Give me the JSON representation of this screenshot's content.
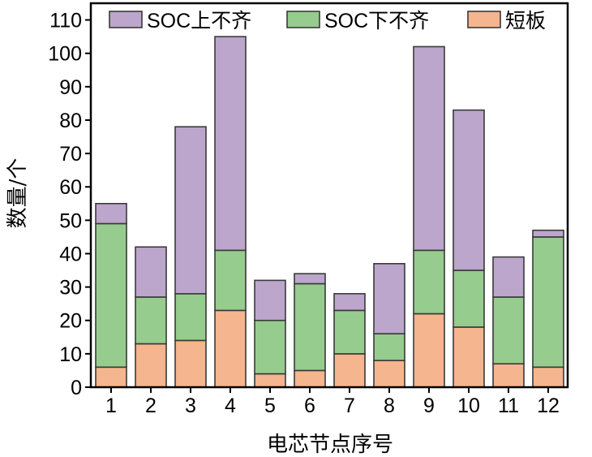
{
  "chart_data": {
    "type": "bar",
    "stacked": true,
    "title": "",
    "xlabel": "电芯节点序号",
    "ylabel": "数量/个",
    "categories": [
      "1",
      "2",
      "3",
      "4",
      "5",
      "6",
      "7",
      "8",
      "9",
      "10",
      "11",
      "12"
    ],
    "series": [
      {
        "name": "短板",
        "color": "#f5b58e",
        "values": [
          6,
          13,
          14,
          23,
          4,
          5,
          10,
          8,
          22,
          18,
          7,
          6
        ]
      },
      {
        "name": "SOC下不齐",
        "color": "#96cc8e",
        "values": [
          43,
          14,
          14,
          18,
          16,
          26,
          13,
          8,
          19,
          17,
          20,
          39
        ]
      },
      {
        "name": "SOC上不齐",
        "color": "#bca6cc",
        "values": [
          6,
          15,
          50,
          64,
          12,
          3,
          5,
          21,
          61,
          48,
          12,
          2
        ]
      }
    ],
    "totals": [
      55,
      42,
      78,
      105,
      32,
      34,
      28,
      37,
      102,
      83,
      39,
      47
    ],
    "ylim": [
      0,
      115
    ],
    "yticks": [
      0,
      10,
      20,
      30,
      40,
      50,
      60,
      70,
      80,
      90,
      100,
      110
    ],
    "legend": {
      "position": "top",
      "order": [
        "SOC上不齐",
        "SOC下不齐",
        "短板"
      ]
    }
  }
}
